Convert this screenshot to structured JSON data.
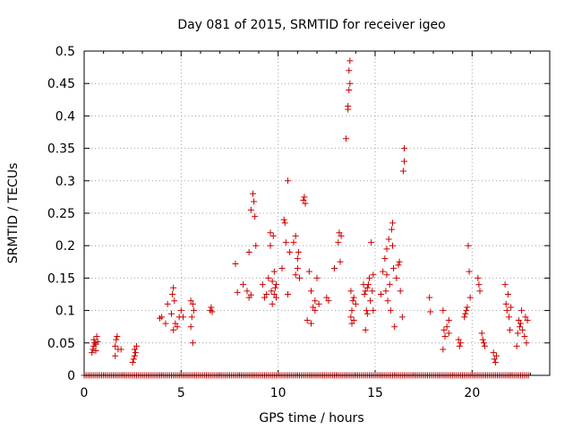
{
  "chart_data": {
    "type": "scatter",
    "title": "Day 081 of 2015, SRMTID for receiver igeo",
    "xlabel": "GPS time / hours",
    "ylabel": "SRMTID / TECUs",
    "xlim": [
      0,
      24
    ],
    "ylim": [
      0,
      0.5
    ],
    "xticks": [
      0,
      5,
      10,
      15,
      20
    ],
    "yticks": [
      0,
      0.05,
      0.1,
      0.15,
      0.2,
      0.25,
      0.3,
      0.35,
      0.4,
      0.45,
      0.5
    ],
    "grid": true,
    "marker": "+",
    "color": "#cc0000",
    "series": [
      {
        "name": "SRMTID",
        "points": [
          [
            0.4,
            0.035
          ],
          [
            0.45,
            0.04
          ],
          [
            0.5,
            0.045
          ],
          [
            0.5,
            0.055
          ],
          [
            0.55,
            0.05
          ],
          [
            0.6,
            0.048
          ],
          [
            0.6,
            0.038
          ],
          [
            0.65,
            0.06
          ],
          [
            0.7,
            0.052
          ],
          [
            1.6,
            0.03
          ],
          [
            1.6,
            0.045
          ],
          [
            1.65,
            0.055
          ],
          [
            1.7,
            0.06
          ],
          [
            1.75,
            0.04
          ],
          [
            1.9,
            0.04
          ],
          [
            2.5,
            0.02
          ],
          [
            2.55,
            0.025
          ],
          [
            2.6,
            0.03
          ],
          [
            2.6,
            0.04
          ],
          [
            2.65,
            0.035
          ],
          [
            2.7,
            0.045
          ],
          [
            3.9,
            0.088
          ],
          [
            4.0,
            0.09
          ],
          [
            4.2,
            0.08
          ],
          [
            4.3,
            0.11
          ],
          [
            4.5,
            0.095
          ],
          [
            4.55,
            0.125
          ],
          [
            4.6,
            0.135
          ],
          [
            4.6,
            0.07
          ],
          [
            4.65,
            0.115
          ],
          [
            4.7,
            0.08
          ],
          [
            4.8,
            0.075
          ],
          [
            4.9,
            0.09
          ],
          [
            5.0,
            0.1
          ],
          [
            5.1,
            0.09
          ],
          [
            5.5,
            0.115
          ],
          [
            5.5,
            0.075
          ],
          [
            5.55,
            0.09
          ],
          [
            5.6,
            0.11
          ],
          [
            5.6,
            0.05
          ],
          [
            5.65,
            0.1
          ],
          [
            6.5,
            0.1
          ],
          [
            6.55,
            0.105
          ],
          [
            6.6,
            0.098
          ],
          [
            7.8,
            0.172
          ],
          [
            7.9,
            0.128
          ],
          [
            8.2,
            0.14
          ],
          [
            8.4,
            0.13
          ],
          [
            8.5,
            0.19
          ],
          [
            8.5,
            0.12
          ],
          [
            8.6,
            0.124
          ],
          [
            8.6,
            0.255
          ],
          [
            8.7,
            0.28
          ],
          [
            8.75,
            0.268
          ],
          [
            8.8,
            0.245
          ],
          [
            8.85,
            0.2
          ],
          [
            9.2,
            0.14
          ],
          [
            9.3,
            0.12
          ],
          [
            9.4,
            0.125
          ],
          [
            9.5,
            0.15
          ],
          [
            9.6,
            0.2
          ],
          [
            9.6,
            0.22
          ],
          [
            9.65,
            0.13
          ],
          [
            9.7,
            0.145
          ],
          [
            9.7,
            0.11
          ],
          [
            9.75,
            0.215
          ],
          [
            9.8,
            0.125
          ],
          [
            9.8,
            0.16
          ],
          [
            9.85,
            0.135
          ],
          [
            9.9,
            0.14
          ],
          [
            9.9,
            0.12
          ],
          [
            10.2,
            0.165
          ],
          [
            10.3,
            0.24
          ],
          [
            10.35,
            0.235
          ],
          [
            10.4,
            0.205
          ],
          [
            10.5,
            0.3
          ],
          [
            10.5,
            0.125
          ],
          [
            10.6,
            0.19
          ],
          [
            10.8,
            0.205
          ],
          [
            10.9,
            0.215
          ],
          [
            10.9,
            0.155
          ],
          [
            11.0,
            0.165
          ],
          [
            11.0,
            0.18
          ],
          [
            11.05,
            0.19
          ],
          [
            11.1,
            0.15
          ],
          [
            11.3,
            0.27
          ],
          [
            11.35,
            0.275
          ],
          [
            11.4,
            0.265
          ],
          [
            11.5,
            0.085
          ],
          [
            11.6,
            0.16
          ],
          [
            11.7,
            0.13
          ],
          [
            11.7,
            0.08
          ],
          [
            11.8,
            0.105
          ],
          [
            11.9,
            0.115
          ],
          [
            11.9,
            0.1
          ],
          [
            12.0,
            0.15
          ],
          [
            12.1,
            0.11
          ],
          [
            12.5,
            0.12
          ],
          [
            12.6,
            0.115
          ],
          [
            12.9,
            0.165
          ],
          [
            13.1,
            0.205
          ],
          [
            13.15,
            0.22
          ],
          [
            13.2,
            0.175
          ],
          [
            13.25,
            0.215
          ],
          [
            13.5,
            0.365
          ],
          [
            13.6,
            0.41
          ],
          [
            13.6,
            0.415
          ],
          [
            13.65,
            0.44
          ],
          [
            13.65,
            0.47
          ],
          [
            13.7,
            0.485
          ],
          [
            13.7,
            0.45
          ],
          [
            13.75,
            0.13
          ],
          [
            13.75,
            0.09
          ],
          [
            13.8,
            0.1
          ],
          [
            13.8,
            0.08
          ],
          [
            13.85,
            0.115
          ],
          [
            13.9,
            0.085
          ],
          [
            13.9,
            0.12
          ],
          [
            14.0,
            0.11
          ],
          [
            14.4,
            0.14
          ],
          [
            14.45,
            0.125
          ],
          [
            14.5,
            0.13
          ],
          [
            14.5,
            0.07
          ],
          [
            14.55,
            0.1
          ],
          [
            14.6,
            0.135
          ],
          [
            14.6,
            0.095
          ],
          [
            14.65,
            0.14
          ],
          [
            14.7,
            0.15
          ],
          [
            14.75,
            0.115
          ],
          [
            14.8,
            0.205
          ],
          [
            14.85,
            0.13
          ],
          [
            14.9,
            0.1
          ],
          [
            14.9,
            0.155
          ],
          [
            15.3,
            0.125
          ],
          [
            15.4,
            0.16
          ],
          [
            15.5,
            0.18
          ],
          [
            15.55,
            0.13
          ],
          [
            15.6,
            0.195
          ],
          [
            15.6,
            0.155
          ],
          [
            15.65,
            0.115
          ],
          [
            15.7,
            0.21
          ],
          [
            15.75,
            0.14
          ],
          [
            15.8,
            0.1
          ],
          [
            15.85,
            0.225
          ],
          [
            15.9,
            0.235
          ],
          [
            15.9,
            0.2
          ],
          [
            15.95,
            0.165
          ],
          [
            16.0,
            0.075
          ],
          [
            16.1,
            0.15
          ],
          [
            16.2,
            0.17
          ],
          [
            16.25,
            0.175
          ],
          [
            16.3,
            0.13
          ],
          [
            16.4,
            0.09
          ],
          [
            16.45,
            0.315
          ],
          [
            16.5,
            0.35
          ],
          [
            16.5,
            0.33
          ],
          [
            17.8,
            0.12
          ],
          [
            17.85,
            0.098
          ],
          [
            18.5,
            0.1
          ],
          [
            18.5,
            0.04
          ],
          [
            18.55,
            0.07
          ],
          [
            18.6,
            0.06
          ],
          [
            18.7,
            0.075
          ],
          [
            18.8,
            0.085
          ],
          [
            18.8,
            0.065
          ],
          [
            19.3,
            0.055
          ],
          [
            19.35,
            0.045
          ],
          [
            19.4,
            0.05
          ],
          [
            19.6,
            0.09
          ],
          [
            19.65,
            0.095
          ],
          [
            19.7,
            0.1
          ],
          [
            19.75,
            0.105
          ],
          [
            19.8,
            0.2
          ],
          [
            19.85,
            0.16
          ],
          [
            19.9,
            0.12
          ],
          [
            20.3,
            0.15
          ],
          [
            20.35,
            0.14
          ],
          [
            20.4,
            0.13
          ],
          [
            20.5,
            0.065
          ],
          [
            20.55,
            0.055
          ],
          [
            20.6,
            0.05
          ],
          [
            20.65,
            0.045
          ],
          [
            21.1,
            0.035
          ],
          [
            21.15,
            0.025
          ],
          [
            21.2,
            0.02
          ],
          [
            21.25,
            0.03
          ],
          [
            21.7,
            0.14
          ],
          [
            21.75,
            0.11
          ],
          [
            21.8,
            0.1
          ],
          [
            21.85,
            0.125
          ],
          [
            21.9,
            0.09
          ],
          [
            21.95,
            0.07
          ],
          [
            22.0,
            0.105
          ],
          [
            22.3,
            0.045
          ],
          [
            22.35,
            0.065
          ],
          [
            22.4,
            0.085
          ],
          [
            22.45,
            0.075
          ],
          [
            22.5,
            0.08
          ],
          [
            22.55,
            0.1
          ],
          [
            22.6,
            0.07
          ],
          [
            22.7,
            0.06
          ],
          [
            22.75,
            0.09
          ],
          [
            22.8,
            0.05
          ],
          [
            22.85,
            0.085
          ]
        ]
      },
      {
        "name": "zero baseline",
        "points_rule": "every 0.1 h from 0.0 to 22.9 at y = 0"
      }
    ]
  }
}
